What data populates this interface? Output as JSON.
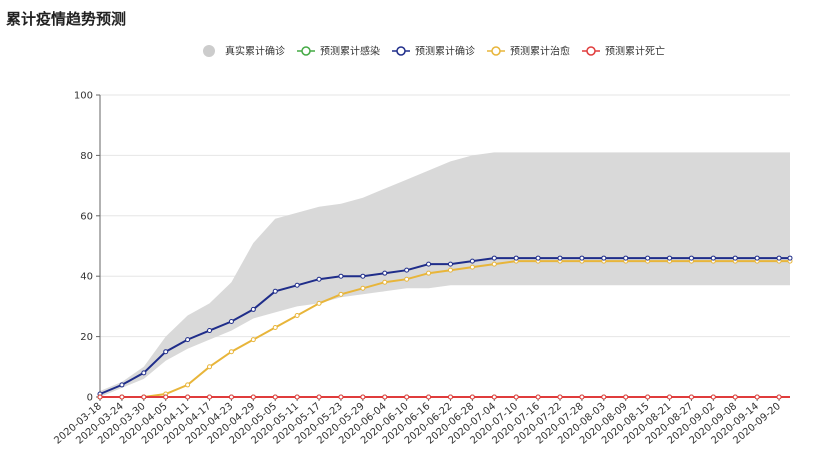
{
  "title": "累计疫情趋势预测",
  "colors": {
    "band": "#d9d9d9",
    "infected": "#44aa44",
    "confirmed": "#1f2d8a",
    "cured": "#e8b53a",
    "dead": "#e03c3c",
    "axis": "#666666",
    "grid": "#e6e6e6"
  },
  "chart_data": {
    "type": "line",
    "xlabel": "",
    "ylabel": "",
    "ylim": [
      0,
      100
    ],
    "y_ticks": [
      0,
      20,
      40,
      60,
      80,
      100
    ],
    "grid": true,
    "legend_position": "top-center",
    "x_start": "2020-03-18",
    "x_end": "2020-09-23",
    "x_tick_labels": [
      "2020-03-18",
      "2020-03-24",
      "2020-03-30",
      "2020-04-05",
      "2020-04-11",
      "2020-04-17",
      "2020-04-23",
      "2020-04-29",
      "2020-05-05",
      "2020-05-11",
      "2020-05-17",
      "2020-05-23",
      "2020-05-29",
      "2020-06-04",
      "2020-06-10",
      "2020-06-16",
      "2020-06-22",
      "2020-06-28",
      "2020-07-04",
      "2020-07-10",
      "2020-07-16",
      "2020-07-22",
      "2020-07-28",
      "2020-08-03",
      "2020-08-09",
      "2020-08-15",
      "2020-08-21",
      "2020-08-27",
      "2020-09-02",
      "2020-09-08",
      "2020-09-14",
      "2020-09-20"
    ],
    "band": {
      "name": "真实累计确诊",
      "x": [
        "2020-03-18",
        "2020-03-24",
        "2020-03-30",
        "2020-04-05",
        "2020-04-11",
        "2020-04-17",
        "2020-04-23",
        "2020-04-29",
        "2020-05-05",
        "2020-05-11",
        "2020-05-17",
        "2020-05-23",
        "2020-05-29",
        "2020-06-04",
        "2020-06-10",
        "2020-06-16",
        "2020-06-22",
        "2020-06-28",
        "2020-07-04",
        "2020-07-10",
        "2020-07-16",
        "2020-07-22",
        "2020-07-28",
        "2020-08-03",
        "2020-08-09",
        "2020-08-15",
        "2020-08-21",
        "2020-08-27",
        "2020-09-02",
        "2020-09-08",
        "2020-09-14",
        "2020-09-20",
        "2020-09-23"
      ],
      "upper": [
        2,
        5,
        10,
        20,
        27,
        31,
        38,
        51,
        59,
        61,
        63,
        64,
        66,
        69,
        72,
        75,
        78,
        80,
        81,
        81,
        81,
        81,
        81,
        81,
        81,
        81,
        81,
        81,
        81,
        81,
        81,
        81,
        81
      ],
      "lower": [
        0,
        3,
        6,
        12,
        16,
        19,
        22,
        26,
        28,
        30,
        31,
        33,
        34,
        35,
        36,
        36,
        37,
        37,
        37,
        37,
        37,
        37,
        37,
        37,
        37,
        37,
        37,
        37,
        37,
        37,
        37,
        37,
        37
      ]
    },
    "series": [
      {
        "name": "预测累计感染",
        "x": [
          "2020-03-18",
          "2020-09-23"
        ],
        "values": [
          0,
          0
        ]
      },
      {
        "name": "预测累计确诊",
        "x": [
          "2020-03-18",
          "2020-03-24",
          "2020-03-30",
          "2020-04-05",
          "2020-04-11",
          "2020-04-17",
          "2020-04-23",
          "2020-04-29",
          "2020-05-05",
          "2020-05-11",
          "2020-05-17",
          "2020-05-23",
          "2020-05-29",
          "2020-06-04",
          "2020-06-10",
          "2020-06-16",
          "2020-06-22",
          "2020-06-28",
          "2020-07-04",
          "2020-07-10",
          "2020-07-16",
          "2020-07-22",
          "2020-07-28",
          "2020-08-03",
          "2020-08-09",
          "2020-08-15",
          "2020-08-21",
          "2020-08-27",
          "2020-09-02",
          "2020-09-08",
          "2020-09-14",
          "2020-09-20",
          "2020-09-23"
        ],
        "values": [
          1,
          4,
          8,
          15,
          19,
          22,
          25,
          29,
          35,
          37,
          39,
          40,
          40,
          41,
          42,
          44,
          44,
          45,
          46,
          46,
          46,
          46,
          46,
          46,
          46,
          46,
          46,
          46,
          46,
          46,
          46,
          46,
          46
        ]
      },
      {
        "name": "预测累计治愈",
        "x": [
          "2020-03-18",
          "2020-03-24",
          "2020-03-30",
          "2020-04-05",
          "2020-04-11",
          "2020-04-17",
          "2020-04-23",
          "2020-04-29",
          "2020-05-05",
          "2020-05-11",
          "2020-05-17",
          "2020-05-23",
          "2020-05-29",
          "2020-06-04",
          "2020-06-10",
          "2020-06-16",
          "2020-06-22",
          "2020-06-28",
          "2020-07-04",
          "2020-07-10",
          "2020-07-16",
          "2020-07-22",
          "2020-07-28",
          "2020-08-03",
          "2020-08-09",
          "2020-08-15",
          "2020-08-21",
          "2020-08-27",
          "2020-09-02",
          "2020-09-08",
          "2020-09-14",
          "2020-09-20",
          "2020-09-23"
        ],
        "values": [
          0,
          0,
          0,
          1,
          4,
          10,
          15,
          19,
          23,
          27,
          31,
          34,
          36,
          38,
          39,
          41,
          42,
          43,
          44,
          45,
          45,
          45,
          45,
          45,
          45,
          45,
          45,
          45,
          45,
          45,
          45,
          45,
          45
        ]
      },
      {
        "name": "预测累计死亡",
        "x": [
          "2020-03-18",
          "2020-09-23"
        ],
        "values": [
          0,
          0
        ]
      }
    ]
  }
}
